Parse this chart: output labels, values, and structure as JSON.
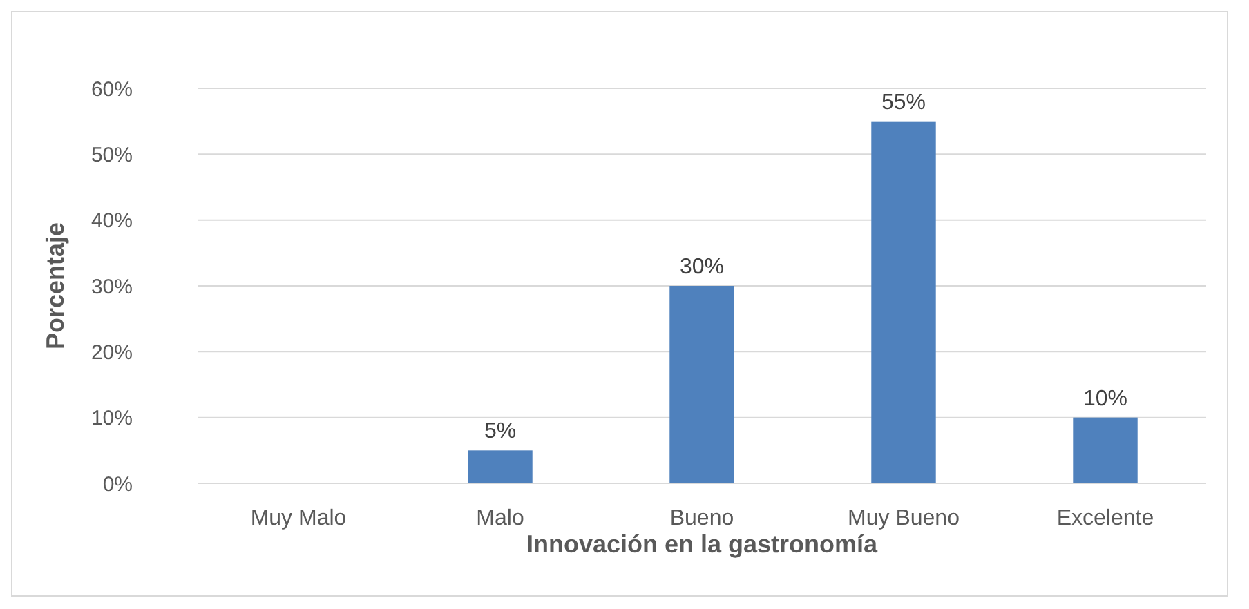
{
  "chart_data": {
    "type": "bar",
    "xlabel": "Innovación en la gastronomía",
    "ylabel": "Porcentaje",
    "categories": [
      "Muy Malo",
      "Malo",
      "Bueno",
      "Muy Bueno",
      "Excelente"
    ],
    "values": [
      0,
      5,
      30,
      55,
      10
    ],
    "value_labels": [
      null,
      "5%",
      "30%",
      "55%",
      "10%"
    ],
    "color": "#4f81bd",
    "ylim": [
      0,
      60
    ],
    "yticks": [
      {
        "value": 0,
        "label": "0%"
      },
      {
        "value": 10,
        "label": "10%"
      },
      {
        "value": 20,
        "label": "20%"
      },
      {
        "value": 30,
        "label": "30%"
      },
      {
        "value": 40,
        "label": "40%"
      },
      {
        "value": 50,
        "label": "50%"
      },
      {
        "value": 60,
        "label": "60%"
      }
    ],
    "grid": "y"
  }
}
